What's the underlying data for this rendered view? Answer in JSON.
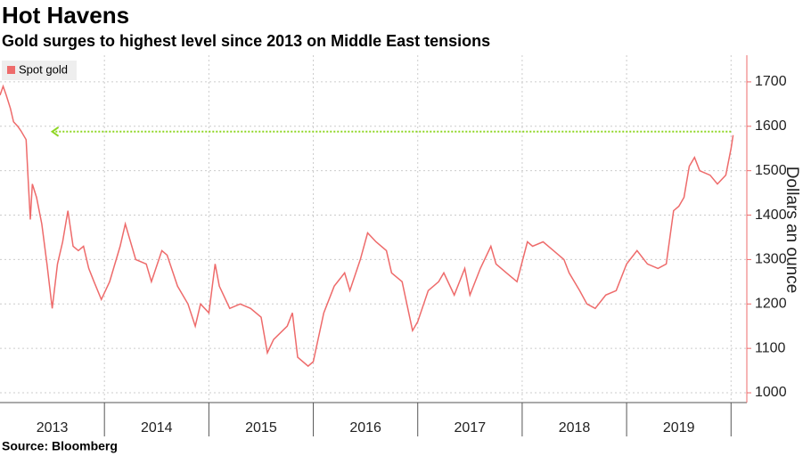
{
  "chart_data": {
    "type": "line",
    "title": "Hot Havens",
    "subtitle": "Gold surges to highest level since 2013 on Middle East tensions",
    "source": "Source: Bloomberg",
    "y_label": "Dollars an ounce",
    "year_labels": [
      "2013",
      "2014",
      "2015",
      "2016",
      "2017",
      "2018",
      "2019"
    ],
    "xlim": [
      2013,
      2020.1
    ],
    "xticks": [
      2014,
      2015,
      2016,
      2017,
      2018,
      2019,
      2020
    ],
    "ylim": [
      978,
      1760
    ],
    "yticks": [
      1000,
      1100,
      1200,
      1300,
      1400,
      1500,
      1600,
      1700
    ],
    "grid": true,
    "legend": "top-left",
    "series": [
      {
        "name": "Spot gold",
        "color": "#ee6b6b",
        "x": [
          2013.0,
          2013.03,
          2013.06,
          2013.1,
          2013.13,
          2013.17,
          2013.2,
          2013.25,
          2013.27,
          2013.29,
          2013.31,
          2013.35,
          2013.4,
          2013.45,
          2013.48,
          2013.5,
          2013.55,
          2013.6,
          2013.65,
          2013.7,
          2013.75,
          2013.8,
          2013.85,
          2013.9,
          2013.97,
          2014.05,
          2014.15,
          2014.2,
          2014.3,
          2014.4,
          2014.45,
          2014.55,
          2014.6,
          2014.7,
          2014.8,
          2014.87,
          2014.92,
          2015.0,
          2015.06,
          2015.1,
          2015.2,
          2015.3,
          2015.4,
          2015.5,
          2015.56,
          2015.62,
          2015.75,
          2015.8,
          2015.85,
          2015.95,
          2016.0,
          2016.1,
          2016.2,
          2016.3,
          2016.35,
          2016.45,
          2016.52,
          2016.6,
          2016.7,
          2016.75,
          2016.85,
          2016.95,
          2017.0,
          2017.1,
          2017.2,
          2017.25,
          2017.35,
          2017.45,
          2017.5,
          2017.6,
          2017.7,
          2017.75,
          2017.85,
          2017.95,
          2018.05,
          2018.1,
          2018.2,
          2018.3,
          2018.4,
          2018.45,
          2018.55,
          2018.62,
          2018.7,
          2018.8,
          2018.9,
          2019.0,
          2019.1,
          2019.2,
          2019.3,
          2019.38,
          2019.45,
          2019.5,
          2019.55,
          2019.6,
          2019.65,
          2019.7,
          2019.8,
          2019.87,
          2019.95,
          2020.0,
          2020.02
        ],
        "values": [
          1670,
          1690,
          1670,
          1640,
          1610,
          1600,
          1590,
          1570,
          1480,
          1390,
          1470,
          1440,
          1380,
          1290,
          1230,
          1190,
          1290,
          1340,
          1410,
          1330,
          1320,
          1330,
          1280,
          1250,
          1210,
          1250,
          1330,
          1380,
          1300,
          1290,
          1250,
          1320,
          1310,
          1240,
          1200,
          1150,
          1200,
          1180,
          1290,
          1240,
          1190,
          1200,
          1190,
          1170,
          1090,
          1120,
          1150,
          1180,
          1080,
          1060,
          1070,
          1180,
          1240,
          1270,
          1230,
          1300,
          1360,
          1340,
          1320,
          1270,
          1250,
          1140,
          1160,
          1230,
          1250,
          1270,
          1220,
          1280,
          1220,
          1280,
          1330,
          1290,
          1270,
          1250,
          1340,
          1330,
          1340,
          1320,
          1300,
          1270,
          1230,
          1200,
          1190,
          1220,
          1230,
          1290,
          1320,
          1290,
          1280,
          1290,
          1410,
          1420,
          1440,
          1510,
          1530,
          1500,
          1490,
          1470,
          1490,
          1550,
          1580
        ]
      }
    ],
    "reference_line": {
      "value": 1588,
      "from": 2020.0,
      "to": 2013.5,
      "color": "#8fd624"
    }
  }
}
